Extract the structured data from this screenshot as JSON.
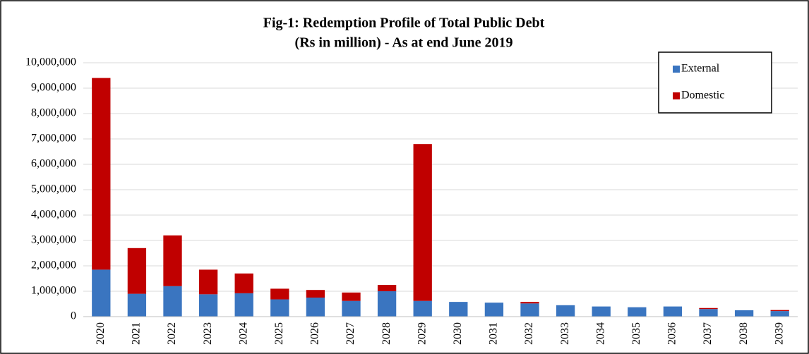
{
  "chart_data": {
    "type": "stacked_bar",
    "title": "Fig-1: Redemption Profile of Total Public Debt",
    "subtitle": "(Rs in million) - As at end June 2019",
    "categories": [
      "2020",
      "2021",
      "2022",
      "2023",
      "2024",
      "2025",
      "2026",
      "2027",
      "2028",
      "2029",
      "2030",
      "2031",
      "2032",
      "2033",
      "2034",
      "2035",
      "2036",
      "2037",
      "2038",
      "2039"
    ],
    "series": [
      {
        "name": "External",
        "color": "#3a75c0",
        "values": [
          1850000,
          900000,
          1200000,
          880000,
          920000,
          680000,
          750000,
          620000,
          1000000,
          620000,
          580000,
          550000,
          520000,
          450000,
          400000,
          370000,
          400000,
          300000,
          250000,
          220000
        ]
      },
      {
        "name": "Domestic",
        "color": "#c00000",
        "values": [
          7550000,
          1800000,
          2000000,
          970000,
          780000,
          420000,
          300000,
          330000,
          250000,
          6180000,
          0,
          0,
          60000,
          0,
          0,
          0,
          0,
          40000,
          0,
          40000
        ]
      }
    ],
    "ylim": [
      0,
      10000000
    ],
    "yticks": [
      0,
      {
        "value": 1000000,
        "label": "1,000,000"
      },
      {
        "value": 2000000,
        "label": "2,000,000"
      },
      {
        "value": 3000000,
        "label": "3,000,000"
      },
      {
        "value": 4000000,
        "label": "4,000,000"
      },
      {
        "value": 5000000,
        "label": "5,000,000"
      },
      {
        "value": 6000000,
        "label": "6,000,000"
      },
      {
        "value": 7000000,
        "label": "7,000,000"
      },
      {
        "value": 8000000,
        "label": "8,000,000"
      },
      {
        "value": 9000000,
        "label": "9,000,000"
      },
      {
        "value": 10000000,
        "label": "10,000,000"
      }
    ],
    "grid": true,
    "legend": "top-right"
  }
}
